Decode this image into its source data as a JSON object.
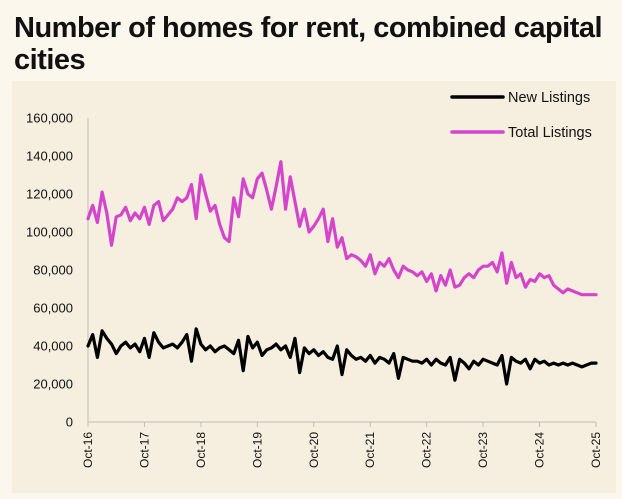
{
  "title": "Number of homes for rent, combined capital cities",
  "chart_data": {
    "type": "line",
    "title": "Number of homes for rent, combined capital cities",
    "xlabel": "",
    "ylabel": "",
    "ylim": [
      0,
      160000
    ],
    "y_ticks": [
      0,
      20000,
      40000,
      60000,
      80000,
      100000,
      120000,
      140000,
      160000
    ],
    "y_tick_labels": [
      "0",
      "20,000",
      "40,000",
      "60,000",
      "80,000",
      "100,000",
      "120,000",
      "140,000",
      "160,000"
    ],
    "x_tick_labels": [
      "Oct-16",
      "Oct-17",
      "Oct-18",
      "Oct-19",
      "Oct-20",
      "Oct-21",
      "Oct-22",
      "Oct-23",
      "Oct-24",
      "Oct-25"
    ],
    "x_range": [
      "2016-10",
      "2025-10"
    ],
    "legend_position": "top-right",
    "grid": false,
    "series": [
      {
        "name": "New Listings",
        "color": "#000000",
        "x": [
          "2016-10",
          "2016-11",
          "2016-12",
          "2017-01",
          "2017-02",
          "2017-03",
          "2017-04",
          "2017-05",
          "2017-06",
          "2017-07",
          "2017-08",
          "2017-09",
          "2017-10",
          "2017-11",
          "2017-12",
          "2018-01",
          "2018-02",
          "2018-03",
          "2018-04",
          "2018-05",
          "2018-06",
          "2018-07",
          "2018-08",
          "2018-09",
          "2018-10",
          "2018-11",
          "2018-12",
          "2019-01",
          "2019-02",
          "2019-03",
          "2019-04",
          "2019-05",
          "2019-06",
          "2019-07",
          "2019-08",
          "2019-09",
          "2019-10",
          "2019-11",
          "2019-12",
          "2020-01",
          "2020-02",
          "2020-03",
          "2020-04",
          "2020-05",
          "2020-06",
          "2020-07",
          "2020-08",
          "2020-09",
          "2020-10",
          "2020-11",
          "2020-12",
          "2021-01",
          "2021-02",
          "2021-03",
          "2021-04",
          "2021-05",
          "2021-06",
          "2021-07",
          "2021-08",
          "2021-09",
          "2021-10",
          "2021-11",
          "2021-12",
          "2022-01",
          "2022-02",
          "2022-03",
          "2022-04",
          "2022-05",
          "2022-06",
          "2022-07",
          "2022-08",
          "2022-09",
          "2022-10",
          "2022-11",
          "2022-12",
          "2023-01",
          "2023-02",
          "2023-03",
          "2023-04",
          "2023-05",
          "2023-06",
          "2023-07",
          "2023-08",
          "2023-09",
          "2023-10",
          "2023-11",
          "2023-12",
          "2024-01",
          "2024-02",
          "2024-03",
          "2024-04",
          "2024-05",
          "2024-06",
          "2024-07",
          "2024-08",
          "2024-09",
          "2024-10",
          "2024-11",
          "2024-12",
          "2025-01",
          "2025-02",
          "2025-03",
          "2025-04",
          "2025-05",
          "2025-06",
          "2025-07",
          "2025-08",
          "2025-09",
          "2025-10"
        ],
        "values": [
          40000,
          46000,
          34000,
          48000,
          44000,
          41000,
          36000,
          40000,
          42000,
          39000,
          41000,
          37000,
          44000,
          34000,
          47000,
          42000,
          39000,
          40000,
          41000,
          39000,
          42000,
          46000,
          32000,
          49000,
          41000,
          38000,
          40000,
          37000,
          39000,
          40000,
          38000,
          36000,
          43000,
          27000,
          45000,
          39000,
          42000,
          35000,
          38000,
          39000,
          41000,
          38000,
          40000,
          34000,
          44000,
          26000,
          39000,
          36000,
          38000,
          35000,
          37000,
          34000,
          33000,
          40000,
          25000,
          38000,
          35000,
          33000,
          34000,
          32000,
          35000,
          31000,
          34000,
          33000,
          31000,
          36000,
          23000,
          34000,
          33000,
          32000,
          32000,
          31000,
          33000,
          30000,
          33000,
          31000,
          30000,
          34000,
          22000,
          33000,
          31000,
          28000,
          32000,
          30000,
          33000,
          32000,
          31000,
          30000,
          35000,
          20000,
          34000,
          32000,
          31000,
          33000,
          28000,
          33000,
          31000,
          32000,
          30000,
          31000,
          30000,
          31000,
          30000,
          31000,
          30000,
          29000,
          30000,
          31000,
          31000
        ]
      },
      {
        "name": "Total Listings",
        "color": "#d445cc",
        "x": [
          "2016-10",
          "2016-11",
          "2016-12",
          "2017-01",
          "2017-02",
          "2017-03",
          "2017-04",
          "2017-05",
          "2017-06",
          "2017-07",
          "2017-08",
          "2017-09",
          "2017-10",
          "2017-11",
          "2017-12",
          "2018-01",
          "2018-02",
          "2018-03",
          "2018-04",
          "2018-05",
          "2018-06",
          "2018-07",
          "2018-08",
          "2018-09",
          "2018-10",
          "2018-11",
          "2018-12",
          "2019-01",
          "2019-02",
          "2019-03",
          "2019-04",
          "2019-05",
          "2019-06",
          "2019-07",
          "2019-08",
          "2019-09",
          "2019-10",
          "2019-11",
          "2019-12",
          "2020-01",
          "2020-02",
          "2020-03",
          "2020-04",
          "2020-05",
          "2020-06",
          "2020-07",
          "2020-08",
          "2020-09",
          "2020-10",
          "2020-11",
          "2020-12",
          "2021-01",
          "2021-02",
          "2021-03",
          "2021-04",
          "2021-05",
          "2021-06",
          "2021-07",
          "2021-08",
          "2021-09",
          "2021-10",
          "2021-11",
          "2021-12",
          "2022-01",
          "2022-02",
          "2022-03",
          "2022-04",
          "2022-05",
          "2022-06",
          "2022-07",
          "2022-08",
          "2022-09",
          "2022-10",
          "2022-11",
          "2022-12",
          "2023-01",
          "2023-02",
          "2023-03",
          "2023-04",
          "2023-05",
          "2023-06",
          "2023-07",
          "2023-08",
          "2023-09",
          "2023-10",
          "2023-11",
          "2023-12",
          "2024-01",
          "2024-02",
          "2024-03",
          "2024-04",
          "2024-05",
          "2024-06",
          "2024-07",
          "2024-08",
          "2024-09",
          "2024-10",
          "2024-11",
          "2024-12",
          "2025-01",
          "2025-02",
          "2025-03",
          "2025-04",
          "2025-05",
          "2025-06",
          "2025-07",
          "2025-08",
          "2025-09",
          "2025-10"
        ],
        "values": [
          107000,
          114000,
          105000,
          121000,
          110000,
          93000,
          108000,
          109000,
          113000,
          106000,
          110000,
          107000,
          113000,
          104000,
          114000,
          116000,
          106000,
          109000,
          112000,
          118000,
          116000,
          118000,
          125000,
          107000,
          130000,
          120000,
          111000,
          114000,
          104000,
          97000,
          95000,
          118000,
          108000,
          128000,
          120000,
          118000,
          128000,
          131000,
          122000,
          112000,
          124000,
          137000,
          112000,
          129000,
          116000,
          103000,
          112000,
          100000,
          103000,
          107000,
          112000,
          95000,
          107000,
          92000,
          97000,
          86000,
          88000,
          87000,
          85000,
          82000,
          88000,
          78000,
          84000,
          82000,
          86000,
          80000,
          76000,
          82000,
          80000,
          79000,
          77000,
          79000,
          74000,
          78000,
          69000,
          77000,
          72000,
          80000,
          71000,
          72000,
          76000,
          78000,
          76000,
          80000,
          82000,
          82000,
          84000,
          79000,
          89000,
          73000,
          84000,
          76000,
          78000,
          71000,
          75000,
          74000,
          78000,
          76000,
          77000,
          72000,
          70000,
          68000,
          70000,
          69000,
          68000,
          67000,
          67000,
          67000,
          67000
        ]
      }
    ]
  }
}
